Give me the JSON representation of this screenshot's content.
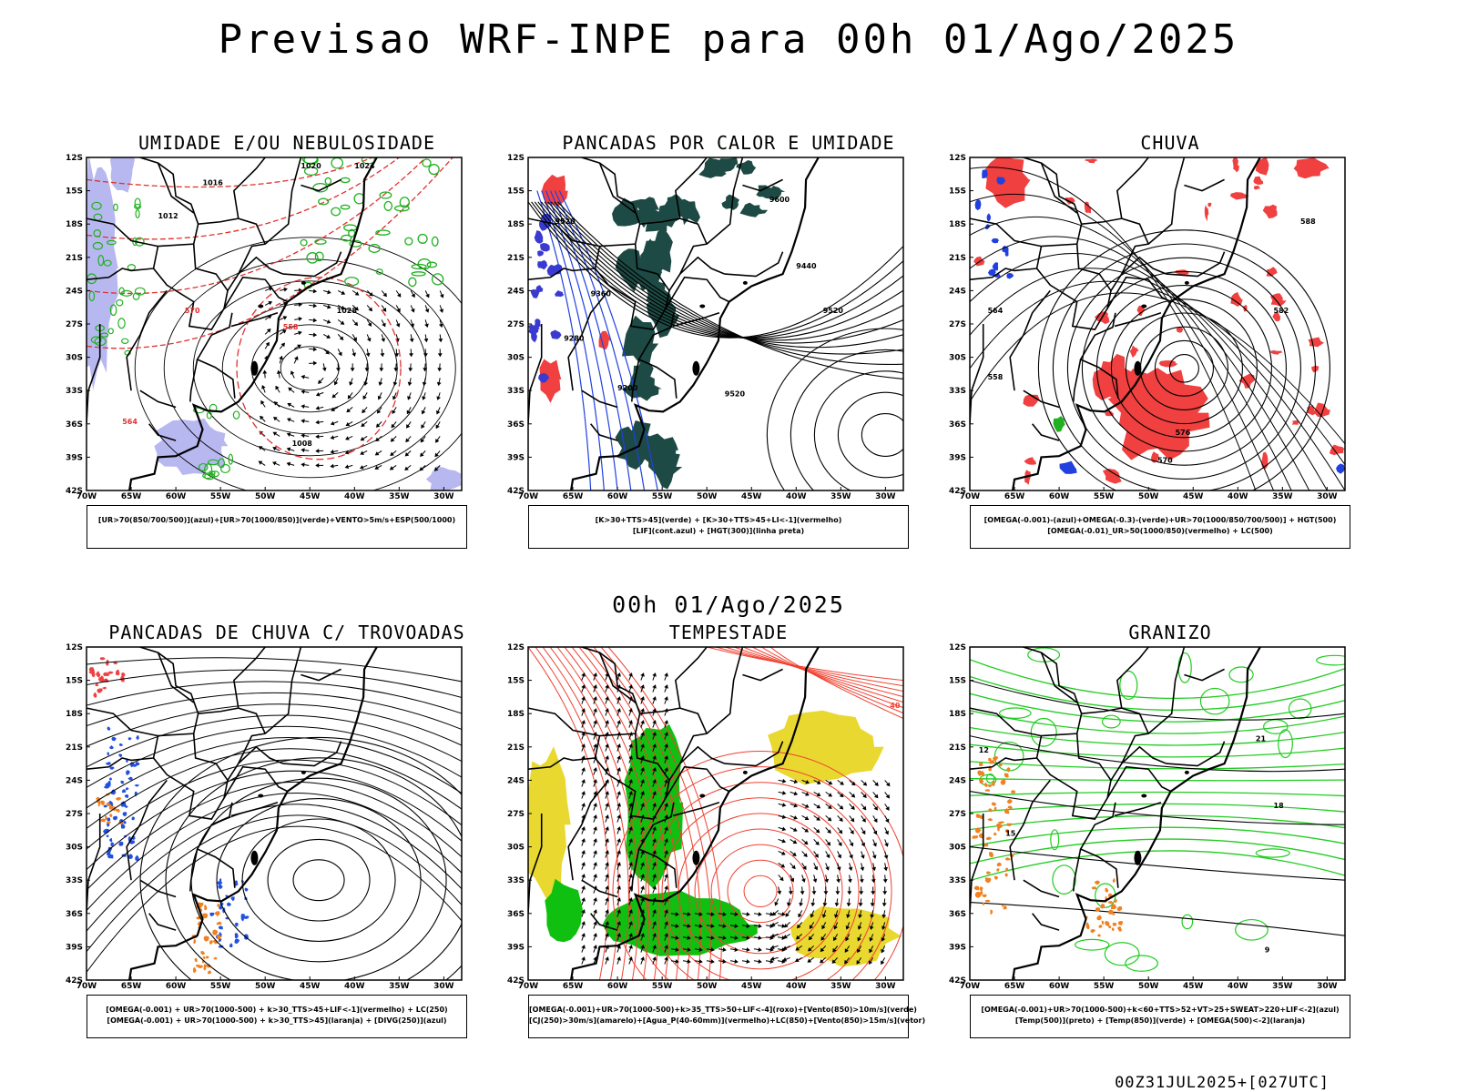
{
  "page": {
    "title": "Previsao WRF-INPE  para 00h 01/Ago/2025",
    "mid_title": "00h 01/Ago/2025",
    "footer": "00Z31JUL2025+[027UTC]"
  },
  "axes": {
    "lat_labels": [
      "12S",
      "15S",
      "18S",
      "21S",
      "24S",
      "27S",
      "30S",
      "33S",
      "36S",
      "39S",
      "42S"
    ],
    "lon_labels": [
      "70W",
      "65W",
      "60W",
      "55W",
      "50W",
      "45W",
      "40W",
      "35W",
      "30W"
    ]
  },
  "panels": [
    {
      "title": "UMIDADE E/OU NEBULOSIDADE",
      "legend": [
        "[UR>70(850/700/500)](azul)+[UR>70(1000/850)](verde)+VENTO>5m/s+ESP(500/1000)"
      ],
      "labels": [
        "1016",
        "1020",
        "1024",
        "1012",
        "1028",
        "1008",
        "564",
        "570",
        "558"
      ],
      "colors": {
        "fill1": "#b8b8f0",
        "fill2": "#d0e8d0",
        "line1": "#e03030",
        "line2": "#20b020"
      }
    },
    {
      "title": "PANCADAS POR CALOR E UMIDADE",
      "legend": [
        "[K>30+TTS>45](verde) + [K>30+TTS>45+LI<-1](vermelho)",
        "[LIF](cont.azul) + [HGT(300)](linha preta)"
      ],
      "labels": [
        "9600",
        "9520",
        "9440",
        "9360",
        "9280",
        "9200"
      ],
      "colors": {
        "fill1": "#1d4a44",
        "fill2": "#f04040",
        "line1": "#2040e0"
      }
    },
    {
      "title": "CHUVA",
      "legend": [
        "[OMEGA(-0.001)-(azul)+OMEGA(-0.3)-(verde)+UR>70(1000/850/700/500)] + HGT(500)",
        "[OMEGA(-0.01)_UR>50(1000/850)(vermelho) + LC(500)"
      ],
      "labels": [
        "588",
        "582",
        "576",
        "570",
        "564",
        "558"
      ],
      "colors": {
        "fill1": "#f04040",
        "fill2": "#2040e0"
      }
    },
    {
      "title": "PANCADAS DE CHUVA C/ TROVOADAS",
      "legend": [
        "[OMEGA(-0.001) + UR>70(1000-500) + k>30_TTS>45+LIF<-1](vermelho) + LC(250)",
        "[OMEGA(-0.001) + UR>70(1000-500) + k>30_TTS>45](laranja) + [DIVG(250)](azul)"
      ],
      "labels": [],
      "colors": {
        "fill1": "#f04040",
        "fill2": "#2050e0",
        "fill3": "#f08020"
      }
    },
    {
      "title": "TEMPESTADE",
      "legend": [
        "[OMEGA(-0.001)+UR>70(1000-500)+k>35_TTS>50+LIF<-4](roxo)+[Vento(850)>10m/s](verde)",
        "[CJ(250)>30m/s](amarelo)+[Agua_P(40-60mm)](vermelho)+LC(850)+[Vento(850)>15m/s](vetor)"
      ],
      "labels": [
        "40"
      ],
      "colors": {
        "fill1": "#10c010",
        "fill2": "#e8d830",
        "line1": "#f04030"
      }
    },
    {
      "title": "GRANIZO",
      "legend": [
        "[OMEGA(-0.001)+UR>70(1000-500)+k<60+TTS>52+VT>25+SWEAT>220+LIF<-2](azul)",
        "[Temp(500)](preto) + [Temp(850)](verde) + [OMEGA(500)<-2](laranja)"
      ],
      "labels": [
        "12",
        "15",
        "18",
        "21",
        "9"
      ],
      "colors": {
        "line1": "#20cc20",
        "fill1": "#f08020"
      }
    }
  ]
}
